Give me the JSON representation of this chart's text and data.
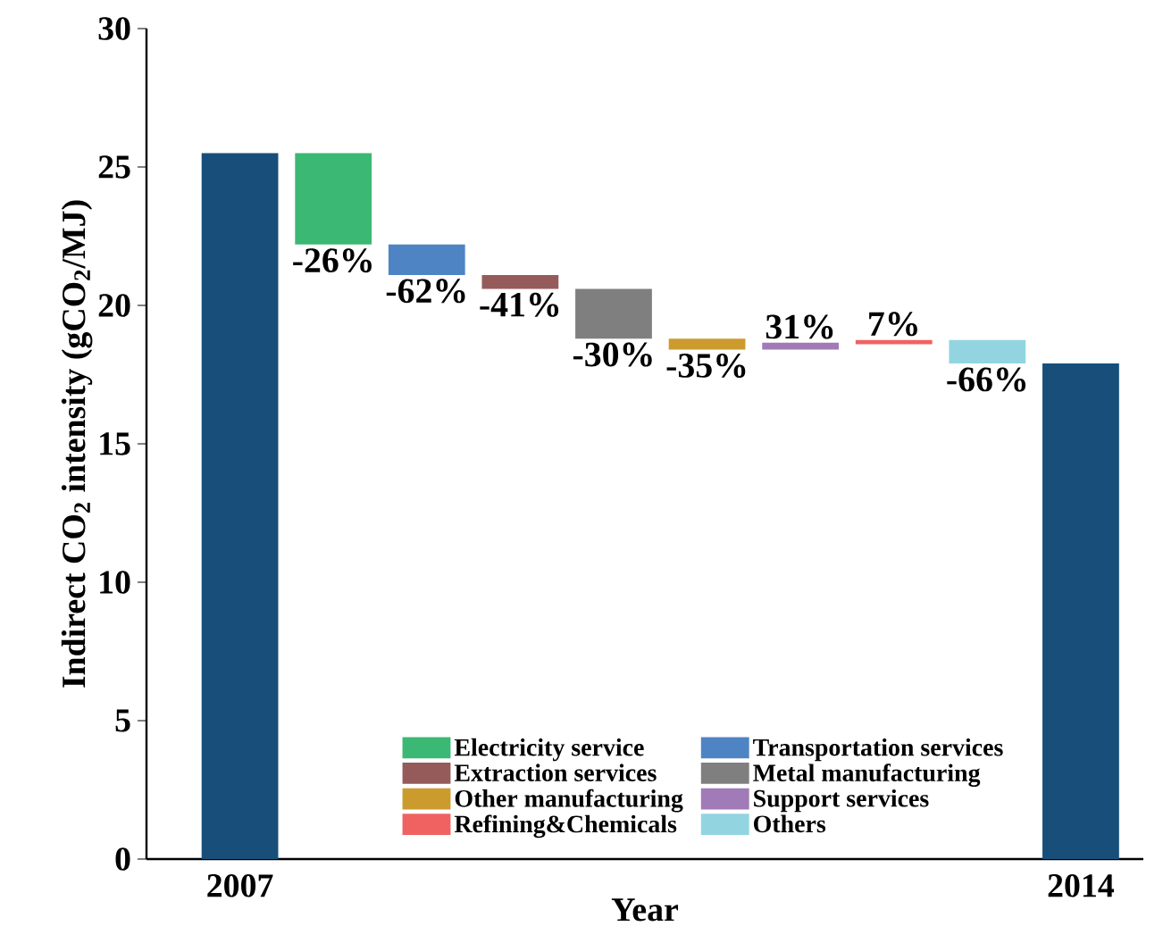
{
  "chart_data": {
    "type": "bar",
    "xlabel": "Year",
    "ylabel": "Indirect CO$_{2}$ intensity (gCO$_{2}$/MJ)",
    "annotations": [
      "-26%",
      "-62%",
      "-41%",
      "-30%",
      "-35%",
      "31%",
      "7%",
      "-66%"
    ],
    "categories": [
      "2007",
      null,
      null,
      null,
      null,
      null,
      null,
      null,
      null,
      "2014"
    ],
    "ylim": [
      0,
      30
    ],
    "yticks": [
      0,
      5,
      10,
      15,
      20,
      25,
      30
    ],
    "legend": "bottom",
    "series": [
      {
        "color": "#174f7a",
        "values": [
          25.5,
          null,
          null,
          null,
          null,
          null,
          null,
          null,
          null,
          17.9
        ]
      },
      {
        "name": "Electricity service",
        "color": "#3bb873",
        "values": [
          null,
          -3.3,
          null,
          null,
          null,
          null,
          null,
          null,
          null,
          null
        ],
        "base": [
          null,
          25.5,
          null,
          null,
          null,
          null,
          null,
          null,
          null,
          null
        ]
      },
      {
        "name": "Transportation services",
        "color": "#4f84c4",
        "values": [
          null,
          null,
          -1.1,
          null,
          null,
          null,
          null,
          null,
          null,
          null
        ],
        "base": [
          null,
          null,
          22.2,
          null,
          null,
          null,
          null,
          null,
          null,
          null
        ]
      },
      {
        "name": "Extraction services",
        "color": "#955b5a",
        "values": [
          null,
          null,
          null,
          -0.5,
          null,
          null,
          null,
          null,
          null,
          null
        ],
        "base": [
          null,
          null,
          null,
          21.1,
          null,
          null,
          null,
          null,
          null,
          null
        ]
      },
      {
        "name": "Metal manufacturing",
        "color": "#7f7f7f",
        "values": [
          null,
          null,
          null,
          null,
          -1.8,
          null,
          null,
          null,
          null,
          null
        ],
        "base": [
          null,
          null,
          null,
          null,
          20.6,
          null,
          null,
          null,
          null,
          null
        ]
      },
      {
        "name": "Other manufacturing",
        "color": "#cc9b2e",
        "values": [
          null,
          null,
          null,
          null,
          null,
          -0.4,
          null,
          null,
          null,
          null
        ],
        "base": [
          null,
          null,
          null,
          null,
          null,
          18.8,
          null,
          null,
          null,
          null
        ]
      },
      {
        "name": "Support services",
        "color": "#a07bb8",
        "values": [
          null,
          null,
          null,
          null,
          null,
          null,
          0.25,
          null,
          null,
          null
        ],
        "base": [
          null,
          null,
          null,
          null,
          null,
          null,
          18.4,
          null,
          null,
          null
        ]
      },
      {
        "name": "Refining&Chemicals",
        "color": "#f06262",
        "values": [
          null,
          null,
          null,
          null,
          null,
          null,
          null,
          0.15,
          null,
          null
        ],
        "base": [
          null,
          null,
          null,
          null,
          null,
          null,
          null,
          18.6,
          null,
          null
        ]
      },
      {
        "name": "Others",
        "color": "#92d5e0",
        "values": [
          null,
          null,
          null,
          null,
          null,
          null,
          null,
          null,
          -0.85,
          null
        ],
        "base": [
          null,
          null,
          null,
          null,
          null,
          null,
          null,
          null,
          18.75,
          null
        ]
      }
    ]
  }
}
